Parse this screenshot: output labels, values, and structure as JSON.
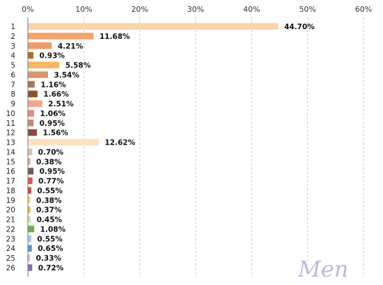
{
  "chart_data": {
    "type": "bar",
    "orientation": "horizontal",
    "categories": [
      "1",
      "2",
      "3",
      "4",
      "5",
      "6",
      "7",
      "8",
      "9",
      "10",
      "11",
      "12",
      "13",
      "14",
      "15",
      "16",
      "17",
      "18",
      "19",
      "20",
      "21",
      "22",
      "23",
      "24",
      "25",
      "26"
    ],
    "values": [
      44.7,
      11.68,
      4.21,
      0.93,
      5.58,
      3.54,
      1.16,
      1.66,
      2.51,
      1.06,
      0.95,
      1.56,
      12.62,
      0.7,
      0.38,
      0.95,
      0.77,
      0.55,
      0.38,
      0.37,
      0.45,
      1.08,
      0.55,
      0.65,
      0.33,
      0.72
    ],
    "value_labels": [
      "44.70%",
      "11.68%",
      "4.21%",
      "0.93%",
      "5.58%",
      "3.54%",
      "1.16%",
      "1.66%",
      "2.51%",
      "1.06%",
      "0.95%",
      "1.56%",
      "12.62%",
      "0.70%",
      "0.38%",
      "0.95%",
      "0.77%",
      "0.55%",
      "0.38%",
      "0.37%",
      "0.45%",
      "1.08%",
      "0.55%",
      "0.65%",
      "0.33%",
      "0.72%"
    ],
    "bar_colors": [
      "#fbd3a8",
      "#f4a36b",
      "#ee9a6c",
      "#b36a2a",
      "#f7b566",
      "#d8976c",
      "#a67b5b",
      "#8b5229",
      "#f4a48c",
      "#e48a78",
      "#c9847a",
      "#8b4a42",
      "#fde0c0",
      "#d8c1aa",
      "#bfb1a2",
      "#7b5a4e",
      "#e8534a",
      "#c84c4c",
      "#f2d568",
      "#e6bc3a",
      "#cfe6b0",
      "#6ab04c",
      "#a5c7e6",
      "#4a98d3",
      "#cdbfe3",
      "#8a6db8"
    ],
    "xlim": [
      0,
      60
    ],
    "xticks": [
      0,
      10,
      20,
      30,
      40,
      50,
      60
    ],
    "xtick_labels": [
      "0%",
      "10%",
      "20%",
      "30%",
      "40%",
      "50%",
      "60%"
    ],
    "xaxis_position": "top",
    "grid": "vertical dashed",
    "title": "",
    "xlabel": "",
    "ylabel": ""
  },
  "watermark_text": "Men"
}
